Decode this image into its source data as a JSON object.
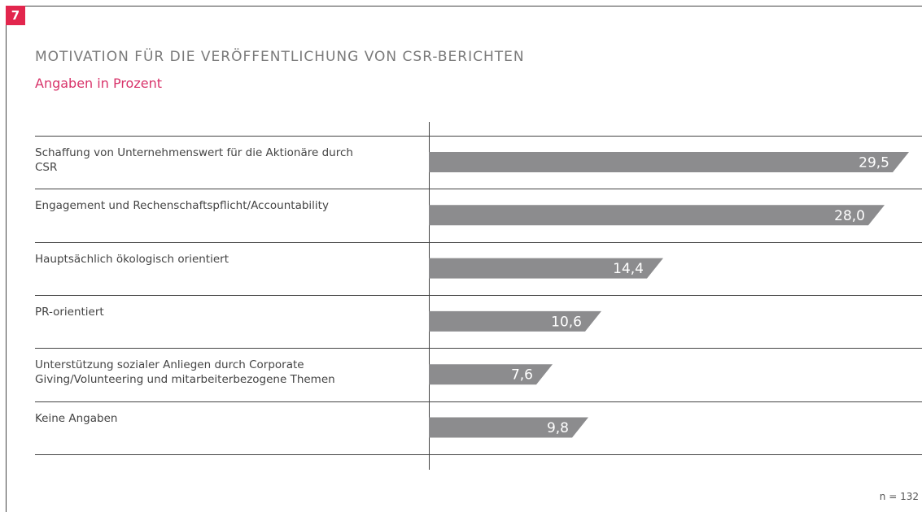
{
  "badge": "7",
  "chart_data": {
    "type": "bar",
    "orientation": "horizontal",
    "title": "MOTIVATION FÜR DIE VERÖFFENTLICHUNG VON CSR-BERICHTEN",
    "subtitle": "Angaben in Prozent",
    "categories": [
      "Schaffung von Unternehmenswert für die Aktionäre durch CSR",
      "Engagement und Rechenschaftspflicht/Accountability",
      "Hauptsächlich ökologisch orientiert",
      "PR-orientiert",
      "Unterstützung sozialer Anliegen durch Corporate Giving/Volunteering und mitarbeiterbezogene Themen",
      "Keine Angaben"
    ],
    "values": [
      29.5,
      28.0,
      14.4,
      10.6,
      7.6,
      9.8
    ],
    "value_labels": [
      "29,5",
      "28,0",
      "14,4",
      "10,6",
      "7,6",
      "9,8"
    ],
    "color": "#8c8c8e",
    "xlim": [
      0,
      30
    ],
    "note": "n = 132"
  }
}
